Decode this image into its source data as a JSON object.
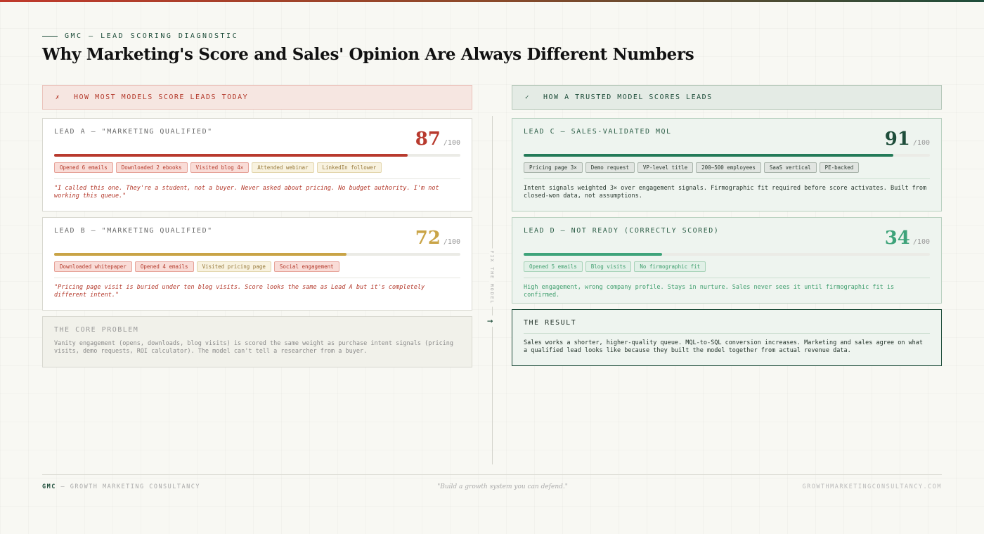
{
  "eyebrow": "GMC — LEAD SCORING DIAGNOSTIC",
  "title": "Why Marketing's Score and Sales' Opinion Are Always Different Numbers",
  "left": {
    "header_mark": "✗",
    "header": "HOW MOST MODELS SCORE LEADS TODAY",
    "lead_a": {
      "title": "LEAD A — \"MARKETING QUALIFIED\"",
      "score": "87",
      "max": "/100",
      "level": 0.87,
      "color": "#b83a2e",
      "tags": [
        "Opened 6 emails",
        "Downloaded 2 ebooks",
        "Visited blog 4×",
        "Attended webinar",
        "LinkedIn follower"
      ],
      "note": "\"I called this one. They're a student, not a buyer. Never asked about pricing. No budget authority. I'm not working this queue.\""
    },
    "lead_b": {
      "title": "LEAD B — \"MARKETING QUALIFIED\"",
      "score": "72",
      "max": "/100",
      "level": 0.72,
      "color": "#c9a447",
      "tags": [
        "Downloaded whitepaper",
        "Opened 4 emails",
        "Visited pricing page",
        "Social engagement"
      ],
      "note": "\"Pricing page visit is buried under ten blog visits. Score looks the same as Lead A but it's completely different intent.\""
    },
    "problem": {
      "title": "THE CORE PROBLEM",
      "body": "Vanity engagement (opens, downloads, blog visits) is scored the same weight as purchase intent signals (pricing visits, demo requests, ROI calculator). The model can't tell a researcher from a buyer."
    }
  },
  "right": {
    "header_mark": "✓",
    "header": "HOW A TRUSTED MODEL SCORES LEADS",
    "lead_c": {
      "title": "LEAD C — SALES-VALIDATED MQL",
      "score": "91",
      "max": "/100",
      "level": 0.91,
      "color": "#1e4d3a",
      "bar_color": "#237a58",
      "tags": [
        "Pricing page 3×",
        "Demo request",
        "VP-level title",
        "200–500 employees",
        "SaaS vertical",
        "PE-backed"
      ],
      "note": "Intent signals weighted 3× over engagement signals. Firmographic fit required before score activates. Built from closed-won data, not assumptions."
    },
    "lead_d": {
      "title": "LEAD D — NOT READY (CORRECTLY SCORED)",
      "score": "34",
      "max": "/100",
      "level": 0.34,
      "color": "#3ea37a",
      "tags": [
        "Opened 5 emails",
        "Blog visits",
        "No firmographic fit"
      ],
      "note": "High engagement, wrong company profile. Stays in nurture. Sales never sees it until firmographic fit is confirmed."
    },
    "result": {
      "title": "THE RESULT",
      "body": "Sales works a shorter, higher-quality queue. MQL-to-SQL conversion increases. Marketing and sales agree on what a qualified lead looks like because they built the model together from actual revenue data."
    }
  },
  "divider": {
    "label": "FIX THE MODEL",
    "arrow": "→"
  },
  "footer": {
    "brand": "GMC",
    "brand_rest": " — GROWTH MARKETING CONSULTANCY",
    "tagline": "\"Build a growth system you can defend.\"",
    "url": "GROWTHMARKETINGCONSULTANCY.COM"
  }
}
